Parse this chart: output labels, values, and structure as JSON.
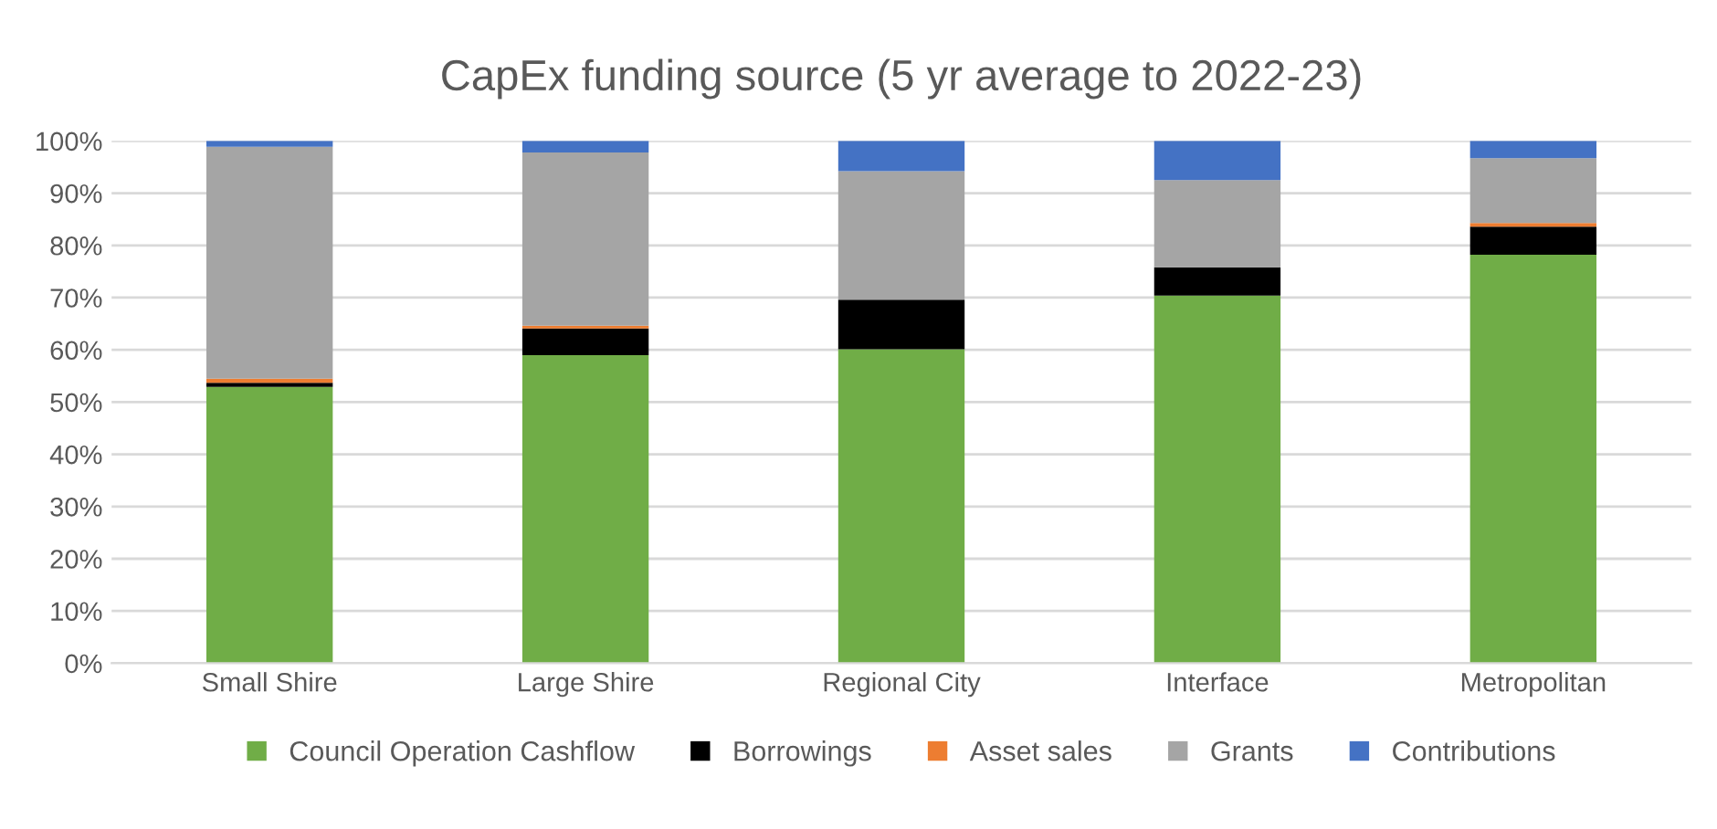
{
  "chart_data": {
    "type": "bar",
    "title": "CapEx funding source (5 yr average to 2022-23)",
    "stacked": true,
    "categories": [
      "Small Shire",
      "Large Shire",
      "Regional City",
      "Interface",
      "Metropolitan"
    ],
    "series": [
      {
        "name": "Council Operation Cashflow",
        "color": "#70ad47",
        "values": [
          52.9,
          59.0,
          60.1,
          70.4,
          78.2
        ]
      },
      {
        "name": "Borrowings",
        "color": "#000000",
        "values": [
          0.8,
          5.1,
          9.5,
          5.4,
          5.4
        ]
      },
      {
        "name": "Asset sales",
        "color": "#ed7d31",
        "values": [
          0.8,
          0.5,
          0,
          0,
          0.7
        ]
      },
      {
        "name": "Grants",
        "color": "#a5a5a5",
        "values": [
          44.4,
          33.2,
          24.6,
          16.7,
          12.4
        ]
      },
      {
        "name": "Contributions",
        "color": "#4472c4",
        "values": [
          1.1,
          2.2,
          5.8,
          7.5,
          3.3
        ]
      }
    ],
    "ylim": [
      0,
      100
    ],
    "yticks": [
      {
        "value": 0,
        "label": "0%"
      },
      {
        "value": 10,
        "label": "10%"
      },
      {
        "value": 20,
        "label": "20%"
      },
      {
        "value": 30,
        "label": "30%"
      },
      {
        "value": 40,
        "label": "40%"
      },
      {
        "value": 50,
        "label": "50%"
      },
      {
        "value": 60,
        "label": "60%"
      },
      {
        "value": 70,
        "label": "70%"
      },
      {
        "value": 80,
        "label": "80%"
      },
      {
        "value": 90,
        "label": "90%"
      },
      {
        "value": 100,
        "label": "100%"
      }
    ],
    "grid": "y",
    "legend": "bottom"
  }
}
